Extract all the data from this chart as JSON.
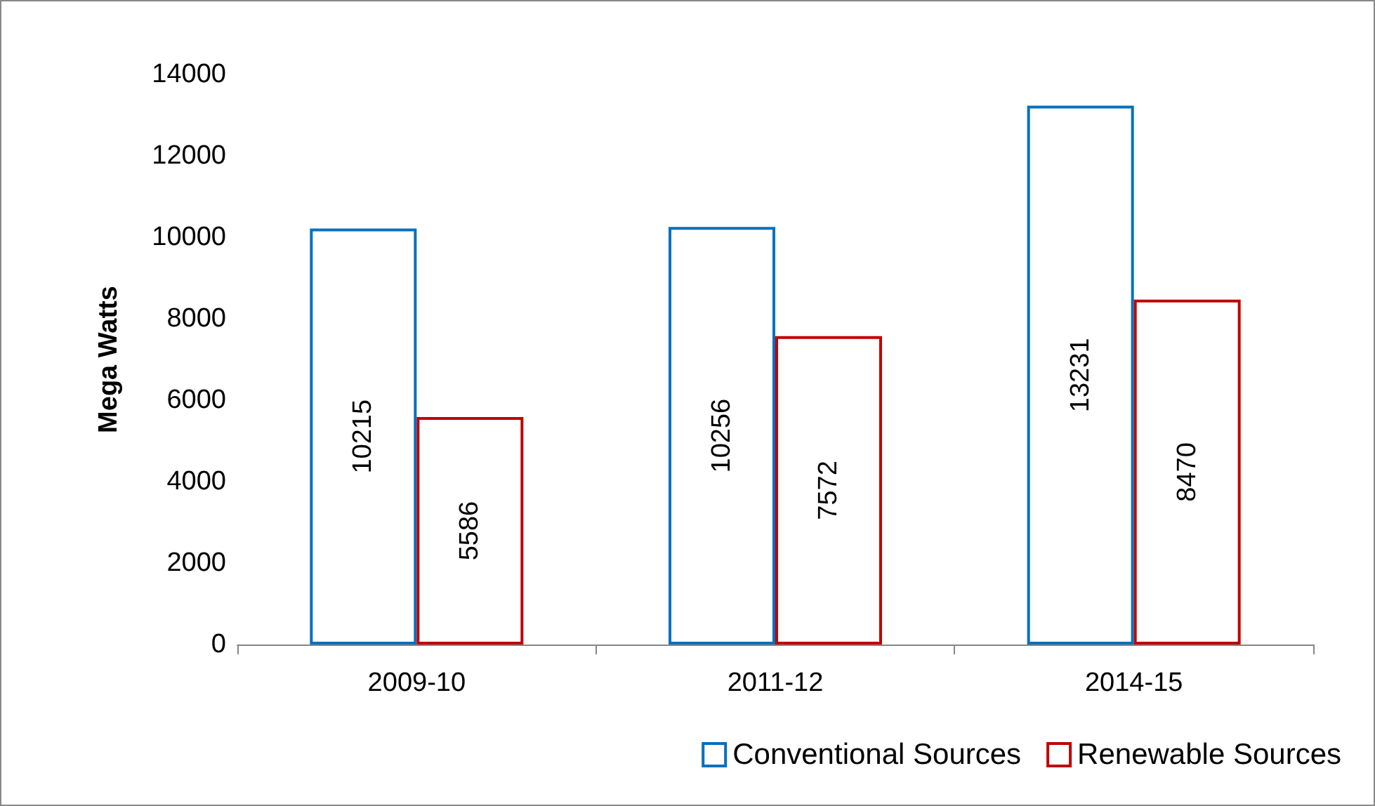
{
  "chart_data": {
    "type": "bar",
    "ylabel": "Mega Watts",
    "categories": [
      "2009-10",
      "2011-12",
      "2014-15"
    ],
    "series": [
      {
        "name": "Conventional Sources",
        "color": "#0070c0",
        "values": [
          10215,
          10256,
          13231
        ]
      },
      {
        "name": "Renewable Sources",
        "color": "#c00000",
        "values": [
          5586,
          7572,
          8470
        ]
      }
    ],
    "ylim": [
      0,
      14000
    ],
    "yticks": [
      0,
      2000,
      4000,
      6000,
      8000,
      10000,
      12000,
      14000
    ],
    "data_labels": true,
    "grid": false,
    "legend": "bottom right"
  }
}
